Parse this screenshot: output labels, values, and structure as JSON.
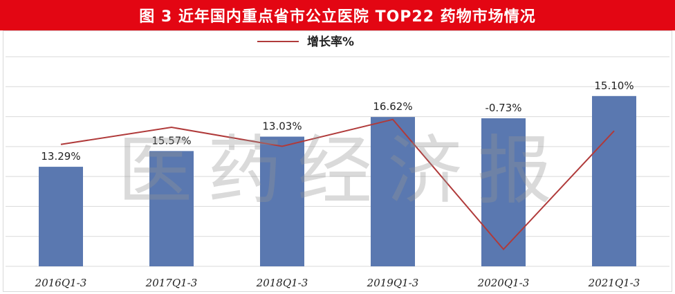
{
  "title": "图 3    近年国内重点省市公立医院 TOP22 药物市场情况",
  "watermark": "医药经济报",
  "colors": {
    "title_bg": "#e30613",
    "bar": "#5a78b0",
    "line": "#b03a3a",
    "grid": "#d9d9d9"
  },
  "chart_data": {
    "type": "bar",
    "categories": [
      "2016Q1-3",
      "2017Q1-3",
      "2018Q1-3",
      "2019Q1-3",
      "2020Q1-3",
      "2021Q1-3"
    ],
    "series": [
      {
        "type": "bar",
        "values": [
          38,
          44,
          49.5,
          57,
          56.5,
          65
        ]
      },
      {
        "name": "增长率%",
        "type": "line",
        "values": [
          13.29,
          15.57,
          13.03,
          16.62,
          -0.73,
          15.1
        ]
      }
    ],
    "data_labels": [
      "13.29%",
      "15.57%",
      "13.03%",
      "16.62%",
      "-0.73%",
      "15.10%"
    ],
    "legend": "top-center",
    "grid": true,
    "bar_ylim": [
      0,
      80
    ],
    "line_ylim": [
      -3,
      25
    ]
  }
}
